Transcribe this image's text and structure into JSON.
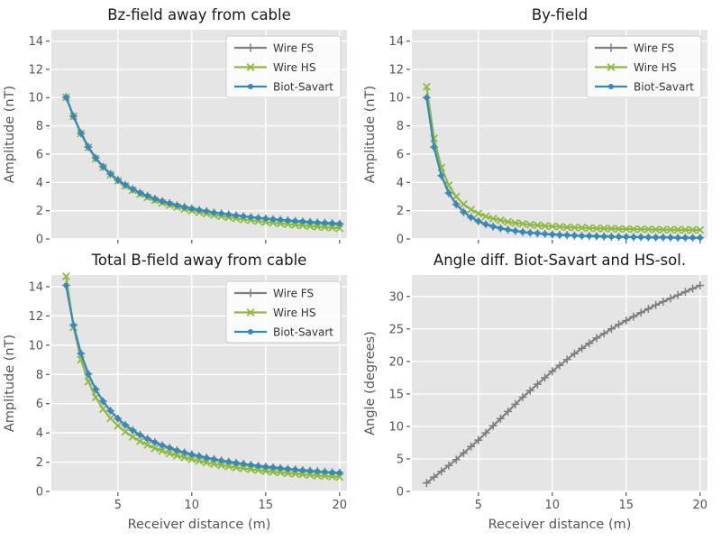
{
  "figure": {
    "background": "#ffffff"
  },
  "colors": {
    "gray_series": "#7f7f7f",
    "green_series": "#8eba42",
    "blue_series": "#348abd",
    "plot_bg": "#e5e5e5",
    "grid": "#ffffff",
    "tick_text": "#555555",
    "title_text": "#1a1a1a",
    "legend_border": "#cccccc"
  },
  "chart_data": [
    {
      "type": "line",
      "title": "Bz-field away from cable",
      "ylabel": "Amplitude (nT)",
      "xlabel": "",
      "xlim": [
        0.5,
        20.5
      ],
      "ylim": [
        0,
        14.8
      ],
      "xticks": [
        5,
        10,
        15,
        20
      ],
      "yticks": [
        0,
        2,
        4,
        6,
        8,
        10,
        12,
        14
      ],
      "show_xtick_labels": false,
      "grid": true,
      "legend": true,
      "legend_position": "upper right",
      "x": [
        1.5,
        2,
        2.5,
        3,
        3.5,
        4,
        4.5,
        5,
        5.5,
        6,
        6.5,
        7,
        7.5,
        8,
        8.5,
        9,
        9.5,
        10,
        10.5,
        11,
        11.5,
        12,
        12.5,
        13,
        13.5,
        14,
        14.5,
        15,
        15.5,
        16,
        16.5,
        17,
        17.5,
        18,
        18.5,
        19,
        19.5,
        20
      ],
      "series": [
        {
          "name": "Wire FS",
          "color": "#7f7f7f",
          "marker": "plus",
          "values": [
            10.02,
            8.68,
            7.48,
            6.51,
            5.73,
            5.11,
            4.6,
            4.17,
            3.82,
            3.52,
            3.26,
            3.04,
            2.84,
            2.67,
            2.52,
            2.38,
            2.26,
            2.15,
            2.05,
            1.96,
            1.87,
            1.8,
            1.73,
            1.66,
            1.6,
            1.54,
            1.49,
            1.44,
            1.39,
            1.35,
            1.31,
            1.27,
            1.24,
            1.2,
            1.17,
            1.14,
            1.11,
            1.08
          ]
        },
        {
          "name": "Wire HS",
          "color": "#8eba42",
          "marker": "x",
          "values": [
            10.02,
            8.67,
            7.46,
            6.48,
            5.69,
            5.07,
            4.55,
            4.11,
            3.75,
            3.44,
            3.17,
            2.94,
            2.73,
            2.55,
            2.39,
            2.25,
            2.12,
            2.0,
            1.89,
            1.79,
            1.69,
            1.61,
            1.53,
            1.45,
            1.38,
            1.32,
            1.26,
            1.2,
            1.14,
            1.09,
            1.04,
            0.99,
            0.95,
            0.9,
            0.86,
            0.83,
            0.79,
            0.75
          ]
        },
        {
          "name": "Biot-Savart",
          "color": "#348abd",
          "marker": "dot",
          "values": [
            10.02,
            8.68,
            7.48,
            6.51,
            5.73,
            5.11,
            4.6,
            4.17,
            3.82,
            3.52,
            3.26,
            3.04,
            2.84,
            2.67,
            2.52,
            2.38,
            2.26,
            2.15,
            2.05,
            1.96,
            1.87,
            1.8,
            1.73,
            1.66,
            1.6,
            1.54,
            1.49,
            1.44,
            1.39,
            1.35,
            1.31,
            1.27,
            1.24,
            1.2,
            1.17,
            1.14,
            1.11,
            1.08
          ]
        }
      ]
    },
    {
      "type": "line",
      "title": "By-field",
      "ylabel": "Amplitude (nT)",
      "xlabel": "",
      "xlim": [
        0.5,
        20.5
      ],
      "ylim": [
        0,
        14.8
      ],
      "xticks": [
        5,
        10,
        15,
        20
      ],
      "yticks": [
        0,
        2,
        4,
        6,
        8,
        10,
        12,
        14
      ],
      "show_xtick_labels": false,
      "grid": true,
      "legend": true,
      "legend_position": "upper right",
      "x": [
        1.5,
        2,
        2.5,
        3,
        3.5,
        4,
        4.5,
        5,
        5.5,
        6,
        6.5,
        7,
        7.5,
        8,
        8.5,
        9,
        9.5,
        10,
        10.5,
        11,
        11.5,
        12,
        12.5,
        13,
        13.5,
        14,
        14.5,
        15,
        15.5,
        16,
        16.5,
        17,
        17.5,
        18,
        18.5,
        19,
        19.5,
        20
      ],
      "series": [
        {
          "name": "Wire FS",
          "color": "#7f7f7f",
          "marker": "plus",
          "values": [
            10.0,
            6.5,
            4.48,
            3.25,
            2.45,
            1.91,
            1.53,
            1.25,
            1.04,
            0.88,
            0.75,
            0.65,
            0.57,
            0.5,
            0.44,
            0.4,
            0.36,
            0.32,
            0.29,
            0.27,
            0.24,
            0.22,
            0.21,
            0.19,
            0.18,
            0.16,
            0.15,
            0.14,
            0.13,
            0.13,
            0.12,
            0.11,
            0.11,
            0.1,
            0.09,
            0.09,
            0.09,
            0.08
          ]
        },
        {
          "name": "Wire HS",
          "color": "#8eba42",
          "marker": "x",
          "values": [
            10.77,
            7.12,
            5.05,
            3.79,
            2.99,
            2.45,
            2.08,
            1.8,
            1.6,
            1.44,
            1.32,
            1.21,
            1.13,
            1.07,
            1.01,
            0.97,
            0.92,
            0.89,
            0.86,
            0.83,
            0.81,
            0.79,
            0.77,
            0.75,
            0.74,
            0.73,
            0.71,
            0.7,
            0.69,
            0.69,
            0.68,
            0.67,
            0.66,
            0.66,
            0.65,
            0.65,
            0.64,
            0.64
          ]
        },
        {
          "name": "Biot-Savart",
          "color": "#348abd",
          "marker": "dot",
          "values": [
            10.0,
            6.5,
            4.48,
            3.25,
            2.45,
            1.91,
            1.53,
            1.25,
            1.04,
            0.88,
            0.75,
            0.65,
            0.57,
            0.5,
            0.44,
            0.4,
            0.36,
            0.32,
            0.29,
            0.27,
            0.24,
            0.22,
            0.21,
            0.19,
            0.18,
            0.16,
            0.15,
            0.14,
            0.13,
            0.13,
            0.12,
            0.11,
            0.11,
            0.1,
            0.09,
            0.09,
            0.09,
            0.08
          ]
        }
      ]
    },
    {
      "type": "line",
      "title": "Total B-field away from cable",
      "ylabel": "Amplitude (nT)",
      "xlabel": "Receiver distance (m)",
      "xlim": [
        0.5,
        20.5
      ],
      "ylim": [
        0,
        14.8
      ],
      "xticks": [
        5,
        10,
        15,
        20
      ],
      "yticks": [
        0,
        2,
        4,
        6,
        8,
        10,
        12,
        14
      ],
      "show_xtick_labels": true,
      "grid": true,
      "legend": true,
      "legend_position": "upper right",
      "x": [
        1.5,
        2,
        2.5,
        3,
        3.5,
        4,
        4.5,
        5,
        5.5,
        6,
        6.5,
        7,
        7.5,
        8,
        8.5,
        9,
        9.5,
        10,
        10.5,
        11,
        11.5,
        12,
        12.5,
        13,
        13.5,
        14,
        14.5,
        15,
        15.5,
        16,
        16.5,
        17,
        17.5,
        18,
        18.5,
        19,
        19.5,
        20
      ],
      "series": [
        {
          "name": "Wire FS",
          "color": "#7f7f7f",
          "marker": "plus",
          "values": [
            14.09,
            11.36,
            9.43,
            8.03,
            6.98,
            6.16,
            5.51,
            4.98,
            4.54,
            4.18,
            3.86,
            3.59,
            3.36,
            3.15,
            2.97,
            2.8,
            2.66,
            2.53,
            2.41,
            2.3,
            2.2,
            2.11,
            2.03,
            1.95,
            1.88,
            1.81,
            1.75,
            1.69,
            1.64,
            1.59,
            1.54,
            1.49,
            1.45,
            1.41,
            1.37,
            1.34,
            1.3,
            1.27
          ]
        },
        {
          "name": "Wire HS",
          "color": "#8eba42",
          "marker": "x",
          "values": [
            14.71,
            11.22,
            9.01,
            7.51,
            6.43,
            5.63,
            5.0,
            4.49,
            4.08,
            3.73,
            3.43,
            3.18,
            2.95,
            2.77,
            2.59,
            2.45,
            2.31,
            2.19,
            2.08,
            1.97,
            1.87,
            1.79,
            1.71,
            1.63,
            1.57,
            1.51,
            1.45,
            1.39,
            1.33,
            1.29,
            1.24,
            1.2,
            1.16,
            1.12,
            1.08,
            1.05,
            1.02,
            0.99
          ]
        },
        {
          "name": "Biot-Savart",
          "color": "#348abd",
          "marker": "dot",
          "values": [
            14.09,
            11.36,
            9.43,
            8.03,
            6.98,
            6.16,
            5.51,
            4.98,
            4.54,
            4.18,
            3.86,
            3.59,
            3.36,
            3.15,
            2.97,
            2.8,
            2.66,
            2.53,
            2.41,
            2.3,
            2.2,
            2.11,
            2.03,
            1.95,
            1.88,
            1.81,
            1.75,
            1.69,
            1.64,
            1.59,
            1.54,
            1.49,
            1.45,
            1.41,
            1.37,
            1.34,
            1.3,
            1.27
          ]
        }
      ]
    },
    {
      "type": "line",
      "title": "Angle diff. Biot-Savart and HS-sol.",
      "ylabel": "Angle (degrees)",
      "xlabel": "Receiver distance (m)",
      "xlim": [
        0.5,
        20.5
      ],
      "ylim": [
        0,
        33.3
      ],
      "xticks": [
        5,
        10,
        15,
        20
      ],
      "yticks": [
        0,
        5,
        10,
        15,
        20,
        25,
        30
      ],
      "show_xtick_labels": true,
      "grid": true,
      "legend": false,
      "x": [
        1.5,
        2,
        2.5,
        3,
        3.5,
        4,
        4.5,
        5,
        5.5,
        6,
        6.5,
        7,
        7.5,
        8,
        8.5,
        9,
        9.5,
        10,
        10.5,
        11,
        11.5,
        12,
        12.5,
        13,
        13.5,
        14,
        14.5,
        15,
        15.5,
        16,
        16.5,
        17,
        17.5,
        18,
        18.5,
        19,
        19.5,
        20
      ],
      "series": [
        {
          "name": "",
          "color": "#7f7f7f",
          "marker": "plus",
          "values": [
            1.3,
            2.2,
            3.1,
            4.0,
            4.9,
            5.9,
            6.9,
            7.9,
            9.0,
            10.1,
            11.2,
            12.3,
            13.4,
            14.5,
            15.5,
            16.5,
            17.5,
            18.5,
            19.4,
            20.3,
            21.2,
            22.0,
            22.8,
            23.6,
            24.3,
            25.0,
            25.7,
            26.3,
            26.9,
            27.5,
            28.1,
            28.7,
            29.2,
            29.7,
            30.2,
            30.7,
            31.2,
            31.7
          ]
        }
      ]
    }
  ]
}
